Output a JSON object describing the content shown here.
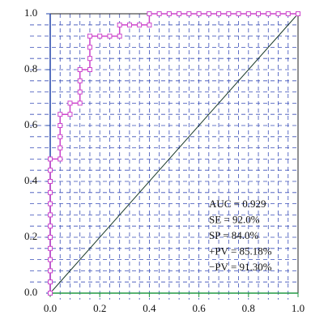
{
  "chart_data": {
    "type": "roc",
    "x": [
      0,
      0,
      0,
      0,
      0,
      0,
      0,
      0,
      0,
      0,
      0,
      0,
      0,
      0.04,
      0.04,
      0.04,
      0.04,
      0.04,
      0.08,
      0.08,
      0.12,
      0.12,
      0.12,
      0.12,
      0.16,
      0.16,
      0.16,
      0.16,
      0.2,
      0.24,
      0.28,
      0.28,
      0.32,
      0.36,
      0.4,
      0.4,
      0.44,
      0.48,
      0.52,
      0.56,
      0.6,
      0.64,
      0.68,
      0.72,
      0.76,
      0.8,
      0.84,
      0.88,
      0.92,
      0.96,
      1
    ],
    "values": [
      0,
      0.04,
      0.08,
      0.12,
      0.16,
      0.2,
      0.24,
      0.28,
      0.32,
      0.36,
      0.4,
      0.44,
      0.48,
      0.48,
      0.52,
      0.56,
      0.6,
      0.64,
      0.64,
      0.68,
      0.68,
      0.72,
      0.76,
      0.8,
      0.8,
      0.84,
      0.88,
      0.92,
      0.92,
      0.92,
      0.92,
      0.96,
      0.96,
      0.96,
      0.96,
      1,
      1,
      1,
      1,
      1,
      1,
      1,
      1,
      1,
      1,
      1,
      1,
      1,
      1,
      1,
      1
    ],
    "color": "#cc44cc",
    "xlim": [
      0,
      1
    ],
    "ylim": [
      0,
      1
    ],
    "xticks": [
      {
        "value": 0,
        "label": "0.0"
      },
      {
        "value": 0.2,
        "label": "0.2"
      },
      {
        "value": 0.4,
        "label": "0.4"
      },
      {
        "value": 0.6,
        "label": "0.6"
      },
      {
        "value": 0.8,
        "label": "0.8"
      },
      {
        "value": 1,
        "label": "1.0"
      }
    ],
    "yticks": [
      {
        "value": 0,
        "label": "0.0"
      },
      {
        "value": 0.2,
        "label": "0.2"
      },
      {
        "value": 0.4,
        "label": "0.4"
      },
      {
        "value": 0.6,
        "label": "0.6"
      },
      {
        "value": 0.8,
        "label": "0.8"
      },
      {
        "value": 1,
        "label": "1.0"
      }
    ],
    "grid": true,
    "grid_step": 0.04,
    "annotations": [
      "AUC = 0.929",
      "SE = 92.0%",
      "SP = 84.0%",
      "+PV = 85.18%",
      "−PV = 91.30%"
    ]
  }
}
